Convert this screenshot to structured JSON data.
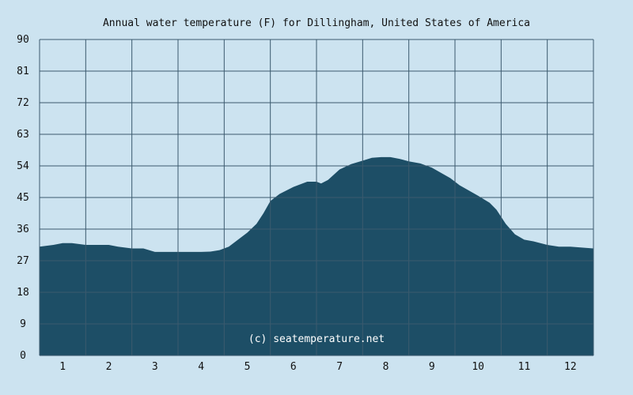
{
  "chart_data": {
    "type": "area",
    "title": "Annual water temperature (F) for Dillingham, United States of America",
    "xlabel": "",
    "ylabel": "",
    "x_ticks": [
      "1",
      "2",
      "3",
      "4",
      "5",
      "6",
      "7",
      "8",
      "9",
      "10",
      "11",
      "12"
    ],
    "y_ticks": [
      "0",
      "9",
      "18",
      "27",
      "36",
      "45",
      "54",
      "63",
      "72",
      "81",
      "90"
    ],
    "xlim": [
      0.5,
      12.5
    ],
    "ylim": [
      0,
      90
    ],
    "grid": true,
    "legend": "none",
    "watermark": "(c) seatemperature.net",
    "series": [
      {
        "x": [
          0.5,
          0.8,
          1.0,
          1.2,
          1.5,
          1.8,
          2.0,
          2.2,
          2.5,
          2.75,
          3.0,
          3.5,
          4.0,
          4.2,
          4.4,
          4.6,
          4.8,
          5.0,
          5.2,
          5.35,
          5.5,
          5.7,
          6.0,
          6.3,
          6.5,
          6.6,
          6.75,
          7.0,
          7.25,
          7.5,
          7.7,
          7.9,
          8.1,
          8.3,
          8.5,
          8.75,
          9.0,
          9.2,
          9.4,
          9.6,
          9.8,
          10.0,
          10.25,
          10.4,
          10.6,
          10.8,
          11.0,
          11.2,
          11.5,
          11.75,
          12.0,
          12.5
        ],
        "y": [
          31,
          31.5,
          32,
          32,
          31.5,
          31.5,
          31.5,
          31,
          30.5,
          30.5,
          29.5,
          29.5,
          29.5,
          29.6,
          30,
          31,
          33,
          35,
          37.5,
          40.5,
          44,
          46,
          48,
          49.5,
          49.5,
          49,
          50,
          53,
          54.5,
          55.5,
          56.3,
          56.5,
          56.5,
          56,
          55.3,
          54.7,
          53.5,
          52,
          50.5,
          48.5,
          47,
          45.5,
          43.5,
          41.5,
          37.5,
          34.5,
          33,
          32.5,
          31.5,
          31,
          31,
          30.5
        ]
      }
    ],
    "colors": {
      "background": "#cce3f0",
      "fill": "#1d4e66",
      "grid": "#3b5a6e"
    }
  }
}
